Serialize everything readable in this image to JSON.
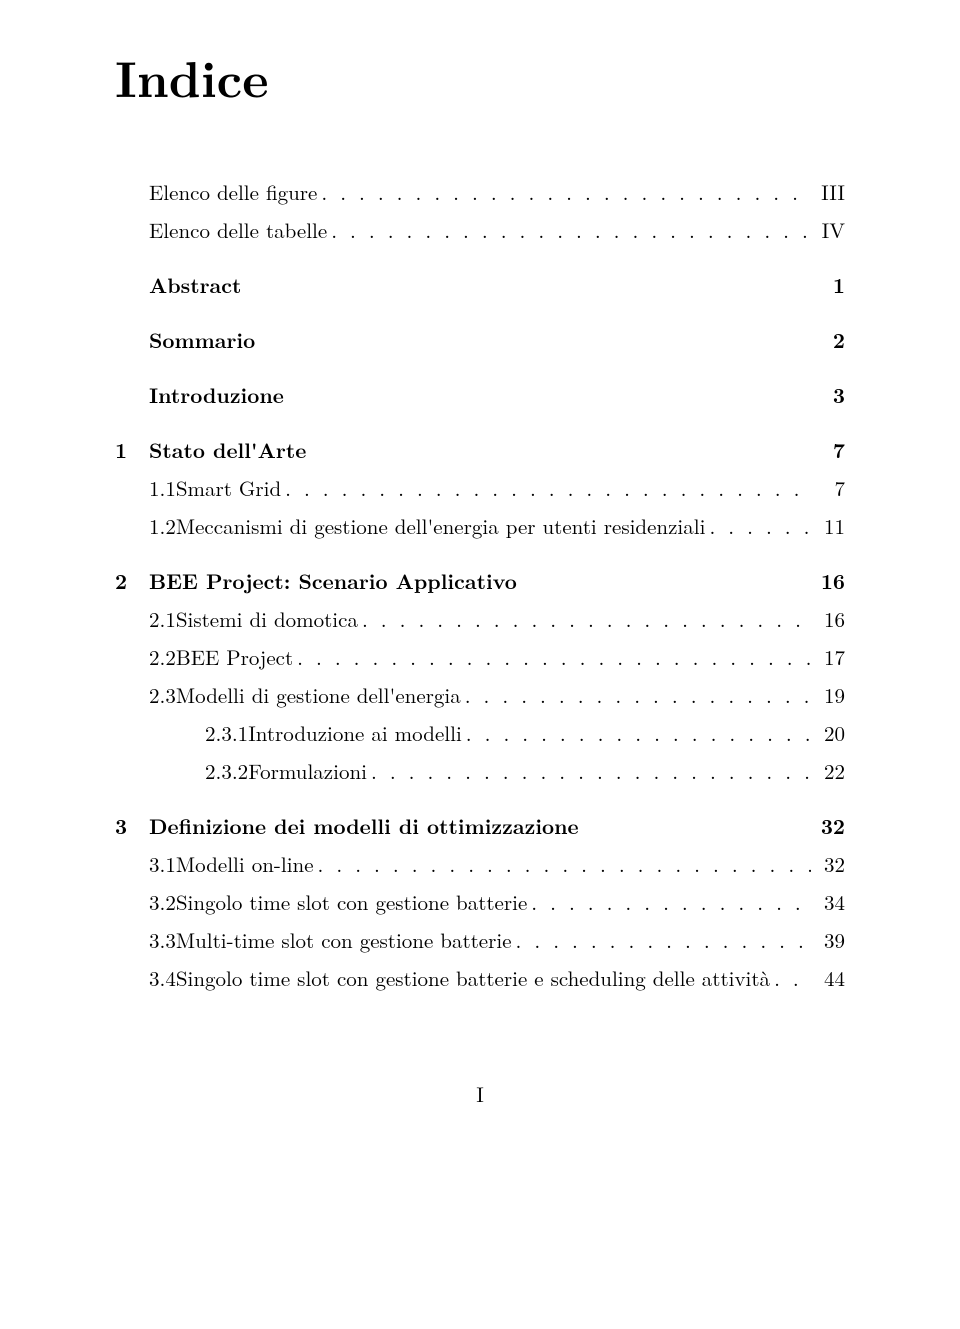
{
  "title": "Indice",
  "footer": "I",
  "entries": [
    {
      "kind": "frontmatter",
      "label": "Elenco delle figure",
      "page": "III",
      "leader": true
    },
    {
      "kind": "frontmatter",
      "label": "Elenco delle tabelle",
      "page": "IV",
      "leader": true
    },
    {
      "kind": "chapter",
      "num": "",
      "label": "Abstract",
      "page": "1",
      "leader": false,
      "first_after_front": true
    },
    {
      "kind": "chapter",
      "num": "",
      "label": "Sommario",
      "page": "2",
      "leader": false
    },
    {
      "kind": "chapter",
      "num": "",
      "label": "Introduzione",
      "page": "3",
      "leader": false
    },
    {
      "kind": "chapter",
      "num": "1",
      "label": "Stato dell'Arte",
      "page": "7",
      "leader": false
    },
    {
      "kind": "section",
      "num": "1.1",
      "label": "Smart Grid",
      "page": "7",
      "leader": true
    },
    {
      "kind": "section",
      "num": "1.2",
      "label": "Meccanismi di gestione dell'energia per utenti residenziali",
      "page": "11",
      "leader": true
    },
    {
      "kind": "chapter",
      "num": "2",
      "label": "BEE Project: Scenario Applicativo",
      "page": "16",
      "leader": false
    },
    {
      "kind": "section",
      "num": "2.1",
      "label": "Sistemi di domotica",
      "page": "16",
      "leader": true
    },
    {
      "kind": "section",
      "num": "2.2",
      "label": "BEE Project",
      "page": "17",
      "leader": true
    },
    {
      "kind": "section",
      "num": "2.3",
      "label": "Modelli di gestione dell'energia",
      "page": "19",
      "leader": true
    },
    {
      "kind": "subsection",
      "num": "2.3.1",
      "label": "Introduzione ai modelli",
      "page": "20",
      "leader": true
    },
    {
      "kind": "subsection",
      "num": "2.3.2",
      "label": "Formulazioni",
      "page": "22",
      "leader": true
    },
    {
      "kind": "chapter",
      "num": "3",
      "label": "Definizione dei modelli di ottimizzazione",
      "page": "32",
      "leader": false
    },
    {
      "kind": "section",
      "num": "3.1",
      "label": "Modelli on-line",
      "page": "32",
      "leader": true
    },
    {
      "kind": "section",
      "num": "3.2",
      "label": "Singolo time slot con gestione batterie",
      "page": "34",
      "leader": true
    },
    {
      "kind": "section",
      "num": "3.3",
      "label": "Multi-time slot con gestione batterie",
      "page": "39",
      "leader": true
    },
    {
      "kind": "section",
      "num": "3.4",
      "label": "Singolo time slot con gestione batterie e scheduling delle attività",
      "page": "44",
      "leader": true,
      "tight": true
    }
  ]
}
